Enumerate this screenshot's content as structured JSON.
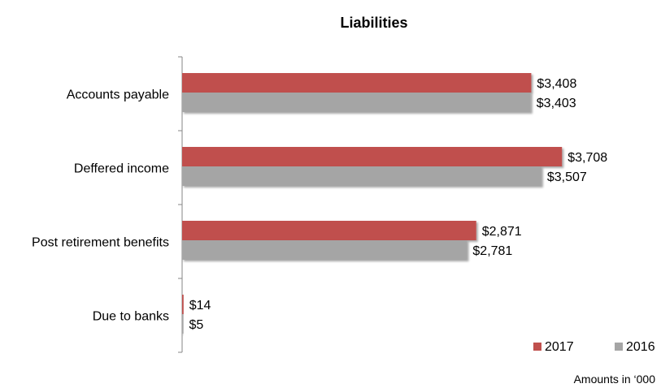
{
  "chart_data": {
    "type": "bar",
    "orientation": "horizontal",
    "title": "Liabilities",
    "categories": [
      "Accounts payable",
      "Deffered income",
      "Post retirement benefits",
      "Due to banks"
    ],
    "series": [
      {
        "name": "2017",
        "values": [
          3408,
          3708,
          2871,
          14
        ],
        "labels": [
          "$3,408",
          "$3,708",
          "$2,871",
          "$14"
        ],
        "color": "#C0504D"
      },
      {
        "name": "2016",
        "values": [
          3403,
          3507,
          2781,
          5
        ],
        "labels": [
          "$3,403",
          "$3,507",
          "$2,781",
          "$5"
        ],
        "color": "#A5A5A5"
      }
    ],
    "xlim": [
      0,
      4000
    ],
    "grid": false,
    "legend": "bottom-right",
    "note": "Amounts in ‘000"
  }
}
